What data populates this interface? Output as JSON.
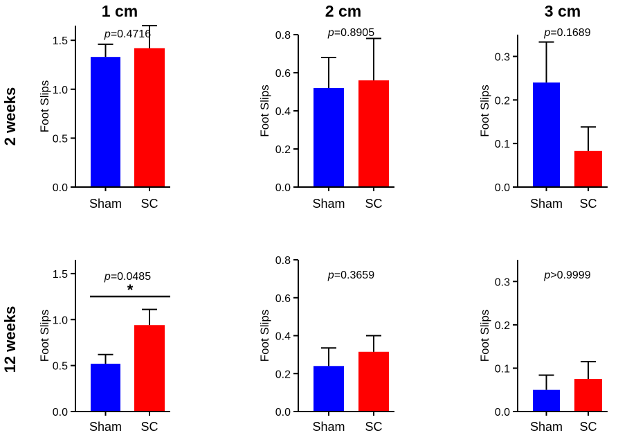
{
  "column_titles": [
    "1 cm",
    "2 cm",
    "3 cm"
  ],
  "row_titles": [
    "2 weeks",
    "12 weeks"
  ],
  "colors": {
    "sham": "#0000ff",
    "sc": "#ff0000",
    "axis": "#000000"
  },
  "chart_data": [
    {
      "type": "bar",
      "row": "2 weeks",
      "column": "1 cm",
      "title": "",
      "xlabel": "",
      "ylabel": "Foot Slips",
      "categories": [
        "Sham",
        "SC"
      ],
      "values": [
        1.33,
        1.42
      ],
      "error_upper": [
        1.46,
        1.65
      ],
      "ylim": [
        0,
        1.65
      ],
      "ticks": [
        0,
        0.5,
        1.0,
        1.5
      ],
      "tick_labels": [
        "0.0",
        "0.5",
        "1.0",
        "1.5"
      ],
      "p_prefix": "p",
      "p_value": "=0.4716",
      "significance": ""
    },
    {
      "type": "bar",
      "row": "2 weeks",
      "column": "2 cm",
      "title": "",
      "xlabel": "",
      "ylabel": "Foot Slips",
      "categories": [
        "Sham",
        "SC"
      ],
      "values": [
        0.52,
        0.56
      ],
      "error_upper": [
        0.68,
        0.78
      ],
      "ylim": [
        0,
        0.8
      ],
      "ticks": [
        0,
        0.2,
        0.4,
        0.6,
        0.8
      ],
      "tick_labels": [
        "0.0",
        "0.2",
        "0.4",
        "0.6",
        "0.8"
      ],
      "p_prefix": "p",
      "p_value": "=0.8905",
      "significance": ""
    },
    {
      "type": "bar",
      "row": "2 weeks",
      "column": "3 cm",
      "title": "",
      "xlabel": "",
      "ylabel": "Foot Slips",
      "categories": [
        "Sham",
        "SC"
      ],
      "values": [
        0.24,
        0.083
      ],
      "error_upper": [
        0.333,
        0.138
      ],
      "ylim": [
        0,
        0.35
      ],
      "ticks": [
        0,
        0.1,
        0.2,
        0.3
      ],
      "tick_labels": [
        "0.0",
        "0.1",
        "0.2",
        "0.3"
      ],
      "p_prefix": "p",
      "p_value": "=0.1689",
      "significance": ""
    },
    {
      "type": "bar",
      "row": "12 weeks",
      "column": "1 cm",
      "title": "",
      "xlabel": "",
      "ylabel": "Foot Slips",
      "categories": [
        "Sham",
        "SC"
      ],
      "values": [
        0.52,
        0.94
      ],
      "error_upper": [
        0.62,
        1.11
      ],
      "ylim": [
        0,
        1.65
      ],
      "ticks": [
        0,
        0.5,
        1.0,
        1.5
      ],
      "tick_labels": [
        "0.0",
        "0.5",
        "1.0",
        "1.5"
      ],
      "p_prefix": "p",
      "p_value": "=0.0485",
      "significance": "*"
    },
    {
      "type": "bar",
      "row": "12 weeks",
      "column": "2 cm",
      "title": "",
      "xlabel": "",
      "ylabel": "Foot Slips",
      "categories": [
        "Sham",
        "SC"
      ],
      "values": [
        0.24,
        0.315
      ],
      "error_upper": [
        0.335,
        0.4
      ],
      "ylim": [
        0,
        0.8
      ],
      "ticks": [
        0,
        0.2,
        0.4,
        0.6,
        0.8
      ],
      "tick_labels": [
        "0.0",
        "0.2",
        "0.4",
        "0.6",
        "0.8"
      ],
      "p_prefix": "p",
      "p_value": "=0.3659",
      "significance": ""
    },
    {
      "type": "bar",
      "row": "12 weeks",
      "column": "3 cm",
      "title": "",
      "xlabel": "",
      "ylabel": "Foot Slips",
      "categories": [
        "Sham",
        "SC"
      ],
      "values": [
        0.05,
        0.075
      ],
      "error_upper": [
        0.084,
        0.115
      ],
      "ylim": [
        0,
        0.35
      ],
      "ticks": [
        0,
        0.1,
        0.2,
        0.3
      ],
      "tick_labels": [
        "0.0",
        "0.1",
        "0.2",
        "0.3"
      ],
      "p_prefix": "p",
      "p_value": ">0.9999",
      "significance": ""
    }
  ]
}
